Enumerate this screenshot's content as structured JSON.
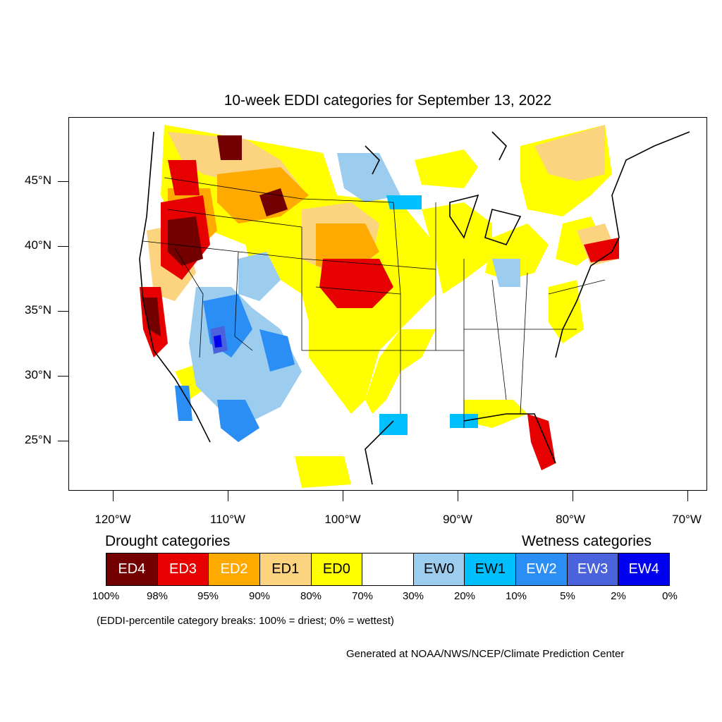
{
  "title": "10-week EDDI categories for September 13, 2022",
  "lat_labels": [
    "45°N",
    "40°N",
    "35°N",
    "30°N",
    "25°N"
  ],
  "lon_labels": [
    "120°W",
    "110°W",
    "100°W",
    "90°W",
    "80°W",
    "70°W"
  ],
  "legend": {
    "drought_heading": "Drought categories",
    "wetness_heading": "Wetness categories",
    "categories": [
      {
        "label": "ED4",
        "color": "#730000",
        "text_color": "#ffffff"
      },
      {
        "label": "ED3",
        "color": "#e60000",
        "text_color": "#ffffff"
      },
      {
        "label": "ED2",
        "color": "#ffaa00",
        "text_color": "#ffffff"
      },
      {
        "label": "ED1",
        "color": "#fcd37f",
        "text_color": "#000000"
      },
      {
        "label": "ED0",
        "color": "#ffff00",
        "text_color": "#000000"
      },
      {
        "label": "",
        "color": "#ffffff",
        "text_color": "#000000"
      },
      {
        "label": "EW0",
        "color": "#9ccdef",
        "text_color": "#000000"
      },
      {
        "label": "EW1",
        "color": "#00bfff",
        "text_color": "#000000"
      },
      {
        "label": "EW2",
        "color": "#2a8ef5",
        "text_color": "#ffffff"
      },
      {
        "label": "EW3",
        "color": "#4a63dd",
        "text_color": "#ffffff"
      },
      {
        "label": "EW4",
        "color": "#0000ee",
        "text_color": "#ffffff"
      }
    ],
    "breaks": [
      "100%",
      "98%",
      "95%",
      "90%",
      "80%",
      "70%",
      "30%",
      "20%",
      "10%",
      "5%",
      "2%",
      "0%"
    ]
  },
  "note": "(EDDI-percentile category breaks: 100% = driest; 0% = wettest)",
  "credit": "Generated at NOAA/NWS/NCEP/Climate Prediction Center"
}
